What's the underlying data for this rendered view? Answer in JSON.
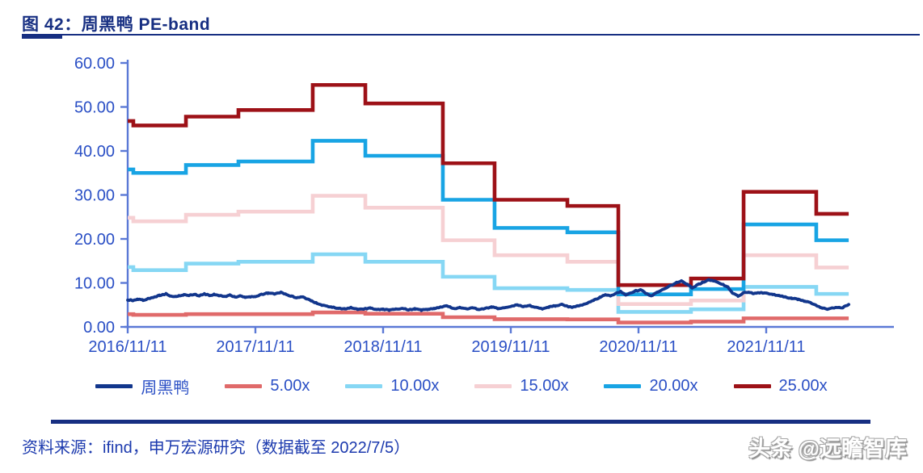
{
  "header": {
    "title": "图 42：周黑鸭 PE-band"
  },
  "footer": {
    "source": "资料来源：ifind，申万宏源研究（数据截至 2022/7/5）",
    "watermark": "头条 @远瞻智库"
  },
  "colors": {
    "title": "#172f82",
    "axis_line": "#5b79d6",
    "tick_label": "#2a4fc5",
    "price": "#12368c",
    "band_5x": "#e06a6a",
    "band_10x": "#86d7f4",
    "band_15x": "#f6d0d3",
    "band_20x": "#18a4e4",
    "band_25x": "#9d1117"
  },
  "chart_data": {
    "type": "line",
    "title": "图 42：周黑鸭 PE-band",
    "xlabel": "",
    "ylabel": "",
    "grid": false,
    "legend_position": "bottom",
    "y_axis": {
      "min": 0,
      "max": 60,
      "tick_step": 10,
      "tick_labels": [
        "0.00",
        "10.00",
        "20.00",
        "30.00",
        "40.00",
        "50.00",
        "60.00"
      ]
    },
    "x_axis": {
      "start_date": "2016/11/11",
      "end_date": "2022/11/11",
      "years_span": 6,
      "tick_labels": [
        "2016/11/11",
        "2017/11/11",
        "2018/11/11",
        "2019/11/11",
        "2020/11/11",
        "2021/11/11"
      ]
    },
    "data_end_date": "2022/7/5",
    "data_end_t": 5.646,
    "band_step_times_years": [
      0,
      0.044,
      0.456,
      0.867,
      1.449,
      1.861,
      2.468,
      2.873,
      3.443,
      3.842,
      4.411,
      4.823,
      5.392
    ],
    "bands": [
      {
        "name": "5.00x",
        "color": "#e06a6a",
        "values": [
          2.9,
          2.75,
          2.9,
          2.9,
          3.3,
          3.0,
          2.2,
          1.75,
          1.7,
          1.0,
          1.2,
          1.95,
          1.95
        ]
      },
      {
        "name": "10.00x",
        "color": "#86d7f4",
        "values": [
          13.6,
          12.9,
          14.4,
          14.8,
          16.5,
          14.8,
          11.4,
          8.8,
          8.4,
          3.4,
          4.0,
          9.1,
          7.5
        ]
      },
      {
        "name": "15.00x",
        "color": "#f6d0d3",
        "values": [
          24.8,
          24.0,
          25.5,
          26.2,
          29.8,
          27.1,
          19.7,
          16.3,
          14.8,
          5.2,
          6.0,
          16.3,
          13.5
        ]
      },
      {
        "name": "20.00x",
        "color": "#18a4e4",
        "values": [
          35.8,
          35.0,
          36.8,
          37.6,
          42.3,
          38.9,
          28.9,
          22.5,
          21.5,
          7.4,
          8.6,
          23.3,
          19.7
        ]
      },
      {
        "name": "25.00x",
        "color": "#9d1117",
        "values": [
          46.8,
          45.8,
          47.8,
          49.3,
          55.0,
          50.8,
          37.2,
          28.9,
          27.5,
          9.5,
          11.0,
          30.7,
          25.7
        ]
      }
    ],
    "price_series": {
      "name": "周黑鸭",
      "color": "#12368c",
      "points": [
        [
          0,
          6.2
        ],
        [
          0.04,
          6.0
        ],
        [
          0.08,
          6.3
        ],
        [
          0.12,
          6.1
        ],
        [
          0.16,
          6.4
        ],
        [
          0.2,
          6.6
        ],
        [
          0.25,
          7.2
        ],
        [
          0.3,
          7.5
        ],
        [
          0.33,
          7.0
        ],
        [
          0.36,
          6.8
        ],
        [
          0.4,
          7.1
        ],
        [
          0.44,
          7.3
        ],
        [
          0.48,
          7.2
        ],
        [
          0.52,
          7.4
        ],
        [
          0.56,
          7.1
        ],
        [
          0.6,
          7.5
        ],
        [
          0.64,
          7.2
        ],
        [
          0.68,
          7.4
        ],
        [
          0.72,
          7.1
        ],
        [
          0.76,
          6.9
        ],
        [
          0.8,
          7.2
        ],
        [
          0.84,
          6.8
        ],
        [
          0.88,
          7.0
        ],
        [
          0.92,
          6.7
        ],
        [
          0.96,
          6.8
        ],
        [
          1.0,
          6.9
        ],
        [
          1.05,
          7.4
        ],
        [
          1.1,
          7.7
        ],
        [
          1.15,
          7.5
        ],
        [
          1.2,
          7.8
        ],
        [
          1.24,
          7.4
        ],
        [
          1.28,
          7.0
        ],
        [
          1.32,
          6.6
        ],
        [
          1.36,
          6.9
        ],
        [
          1.4,
          6.4
        ],
        [
          1.44,
          5.9
        ],
        [
          1.48,
          5.4
        ],
        [
          1.52,
          5.0
        ],
        [
          1.56,
          4.7
        ],
        [
          1.6,
          4.5
        ],
        [
          1.65,
          4.2
        ],
        [
          1.7,
          4.1
        ],
        [
          1.75,
          4.4
        ],
        [
          1.8,
          4.0
        ],
        [
          1.85,
          4.1
        ],
        [
          1.9,
          4.3
        ],
        [
          1.95,
          3.9
        ],
        [
          2.0,
          4.0
        ],
        [
          2.05,
          3.8
        ],
        [
          2.1,
          4.0
        ],
        [
          2.15,
          4.2
        ],
        [
          2.2,
          3.9
        ],
        [
          2.25,
          4.1
        ],
        [
          2.3,
          3.8
        ],
        [
          2.35,
          4.0
        ],
        [
          2.4,
          4.2
        ],
        [
          2.45,
          4.5
        ],
        [
          2.5,
          4.8
        ],
        [
          2.53,
          4.4
        ],
        [
          2.56,
          4.2
        ],
        [
          2.6,
          4.4
        ],
        [
          2.65,
          4.1
        ],
        [
          2.7,
          4.3
        ],
        [
          2.75,
          4.0
        ],
        [
          2.8,
          4.2
        ],
        [
          2.85,
          4.5
        ],
        [
          2.9,
          4.2
        ],
        [
          2.95,
          4.4
        ],
        [
          3.0,
          4.6
        ],
        [
          3.05,
          5.0
        ],
        [
          3.1,
          4.6
        ],
        [
          3.15,
          4.8
        ],
        [
          3.2,
          4.4
        ],
        [
          3.25,
          4.1
        ],
        [
          3.3,
          4.5
        ],
        [
          3.35,
          4.8
        ],
        [
          3.4,
          5.1
        ],
        [
          3.44,
          4.7
        ],
        [
          3.48,
          4.5
        ],
        [
          3.52,
          4.7
        ],
        [
          3.56,
          5.0
        ],
        [
          3.6,
          5.4
        ],
        [
          3.65,
          6.1
        ],
        [
          3.7,
          6.7
        ],
        [
          3.74,
          7.3
        ],
        [
          3.78,
          7.0
        ],
        [
          3.82,
          7.6
        ],
        [
          3.86,
          8.1
        ],
        [
          3.9,
          7.3
        ],
        [
          3.94,
          7.7
        ],
        [
          3.98,
          8.2
        ],
        [
          4.02,
          8.4
        ],
        [
          4.06,
          7.6
        ],
        [
          4.1,
          7.1
        ],
        [
          4.15,
          7.9
        ],
        [
          4.2,
          8.7
        ],
        [
          4.25,
          9.4
        ],
        [
          4.3,
          10.1
        ],
        [
          4.34,
          10.5
        ],
        [
          4.38,
          9.7
        ],
        [
          4.42,
          8.9
        ],
        [
          4.46,
          9.5
        ],
        [
          4.5,
          10.1
        ],
        [
          4.55,
          10.7
        ],
        [
          4.6,
          10.4
        ],
        [
          4.65,
          9.8
        ],
        [
          4.7,
          9.0
        ],
        [
          4.74,
          7.6
        ],
        [
          4.78,
          7.0
        ],
        [
          4.82,
          7.7
        ],
        [
          4.86,
          7.9
        ],
        [
          4.9,
          7.6
        ],
        [
          4.95,
          7.8
        ],
        [
          5.0,
          7.7
        ],
        [
          5.05,
          7.4
        ],
        [
          5.1,
          7.1
        ],
        [
          5.15,
          6.8
        ],
        [
          5.2,
          6.5
        ],
        [
          5.25,
          6.3
        ],
        [
          5.3,
          5.9
        ],
        [
          5.35,
          5.5
        ],
        [
          5.4,
          4.7
        ],
        [
          5.44,
          4.3
        ],
        [
          5.48,
          4.0
        ],
        [
          5.52,
          4.3
        ],
        [
          5.56,
          4.5
        ],
        [
          5.6,
          4.4
        ],
        [
          5.646,
          5.1
        ]
      ]
    }
  }
}
